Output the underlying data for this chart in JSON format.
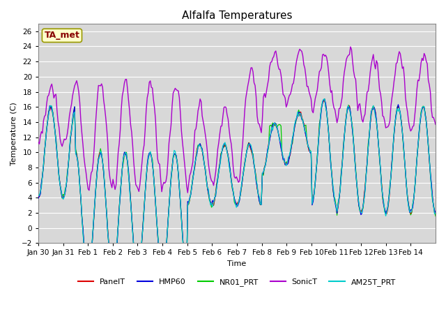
{
  "title": "Alfalfa Temperatures",
  "xlabel": "Time",
  "ylabel": "Temperature (C)",
  "ylim": [
    -2,
    27
  ],
  "yticks": [
    -2,
    0,
    2,
    4,
    6,
    8,
    10,
    12,
    14,
    16,
    18,
    20,
    22,
    24,
    26
  ],
  "xtick_labels": [
    "Jan 30",
    "Jan 31",
    "Feb 1",
    "Feb 2",
    "Feb 3",
    "Feb 4",
    "Feb 5",
    "Feb 6",
    "Feb 7",
    "Feb 8",
    "Feb 9",
    "Feb 10",
    "Feb 11",
    "Feb 12",
    "Feb 13",
    "Feb 14"
  ],
  "bg_color": "#d8d8d8",
  "fig_color": "#ffffff",
  "grid_color": "#ffffff",
  "annotation_text": "TA_met",
  "annotation_bg": "#ffffcc",
  "annotation_border": "#999900",
  "annotation_color": "#880000",
  "line_colors": {
    "PanelT": "#dd0000",
    "HMP60": "#0000dd",
    "NR01_PRT": "#00cc00",
    "SonicT": "#aa00cc",
    "AM25T_PRT": "#00cccc"
  },
  "legend_labels": [
    "PanelT",
    "HMP60",
    "NR01_PRT",
    "SonicT",
    "AM25T_PRT"
  ]
}
